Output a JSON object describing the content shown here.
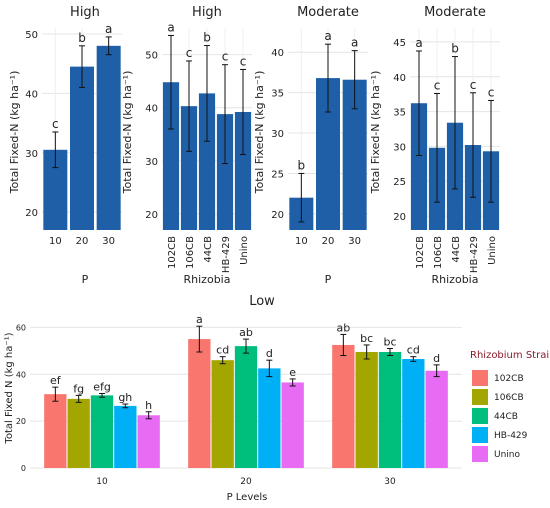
{
  "chart_data": [
    {
      "type": "bar",
      "title": "High",
      "ylabel": "Total Fixed-N (kg ha⁻¹)",
      "xlabel": "P",
      "categories": [
        "10",
        "20",
        "30"
      ],
      "values": [
        30.5,
        44.5,
        48.0
      ],
      "errors": [
        3.0,
        3.5,
        1.5
      ],
      "letters": [
        "c",
        "b",
        "a"
      ],
      "ylim": [
        17,
        51
      ],
      "yticks": [
        20,
        30,
        40,
        50
      ],
      "grid": true
    },
    {
      "type": "bar",
      "title": "High",
      "ylabel": "Total Fixed-N (kg ha⁻¹)",
      "xlabel": "Rhizobia",
      "categories": [
        "102CB",
        "106CB",
        "44CB",
        "HB-429",
        "Unino"
      ],
      "values": [
        44.8,
        40.3,
        42.7,
        38.8,
        39.2
      ],
      "errors": [
        8.8,
        8.5,
        9.0,
        9.3,
        8.0
      ],
      "letters": [
        "a",
        "c",
        "b",
        "c",
        "c"
      ],
      "ylim": [
        17,
        55
      ],
      "yticks": [
        20,
        30,
        40,
        50
      ],
      "grid": true
    },
    {
      "type": "bar",
      "title": "Moderate",
      "ylabel": "Total Fixed-N (kg ha⁻¹)",
      "xlabel": "P",
      "categories": [
        "10",
        "20",
        "30"
      ],
      "values": [
        22.0,
        36.8,
        36.6
      ],
      "errors": [
        3.0,
        4.2,
        3.6
      ],
      "letters": [
        "b",
        "a",
        "a"
      ],
      "ylim": [
        18,
        43
      ],
      "yticks": [
        20,
        25,
        30,
        35,
        40
      ],
      "grid": true
    },
    {
      "type": "bar",
      "title": "Moderate",
      "ylabel": "Total Fixed-N (kg ha⁻¹)",
      "xlabel": "Rhizobia",
      "categories": [
        "102CB",
        "106CB",
        "44CB",
        "HB-429",
        "Unino"
      ],
      "values": [
        36.2,
        29.8,
        33.4,
        30.2,
        29.3
      ],
      "errors": [
        7.5,
        7.8,
        9.5,
        7.5,
        7.3
      ],
      "letters": [
        "a",
        "c",
        "b",
        "c",
        "c"
      ],
      "ylim": [
        18,
        47
      ],
      "yticks": [
        20,
        25,
        30,
        35,
        40,
        45
      ],
      "grid": true
    },
    {
      "type": "bar",
      "title": "Low",
      "ylabel": "Total Fixed N (kg ha⁻¹)",
      "xlabel": "P Levels",
      "categories": [
        "10",
        "20",
        "30"
      ],
      "series": [
        {
          "name": "102CB",
          "color": "#f8766d",
          "values": [
            31.5,
            55.0,
            52.5
          ],
          "errors": [
            3.0,
            5.5,
            4.5
          ],
          "letters": [
            "ef",
            "a",
            "ab"
          ]
        },
        {
          "name": "106CB",
          "color": "#a3a500",
          "values": [
            29.5,
            46.0,
            49.5
          ],
          "errors": [
            1.5,
            1.5,
            3.0
          ],
          "letters": [
            "fg",
            "cd",
            "bc"
          ]
        },
        {
          "name": "44CB",
          "color": "#00bf7d",
          "values": [
            31.0,
            52.0,
            49.5
          ],
          "errors": [
            0.8,
            3.0,
            1.5
          ],
          "letters": [
            "efg",
            "ab",
            "bc"
          ]
        },
        {
          "name": "HB-429",
          "color": "#00b0f6",
          "values": [
            26.5,
            42.5,
            46.5
          ],
          "errors": [
            0.8,
            3.5,
            1.0
          ],
          "letters": [
            "gh",
            "d",
            "cd"
          ]
        },
        {
          "name": "Unino",
          "color": "#e76bf3",
          "values": [
            22.5,
            36.5,
            41.5
          ],
          "errors": [
            1.5,
            1.5,
            2.5
          ],
          "letters": [
            "h",
            "e",
            "d"
          ]
        }
      ],
      "ylim": [
        0,
        64
      ],
      "yticks": [
        0,
        20,
        40,
        60
      ],
      "legend_title": "Rhizobium Strain",
      "legend_position": "right",
      "grid": true
    }
  ]
}
